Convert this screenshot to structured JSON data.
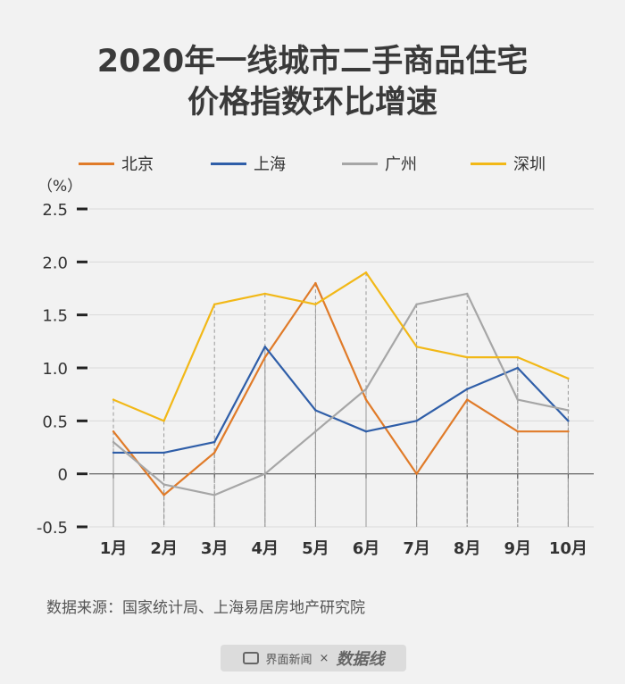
{
  "header": {
    "title_line1": "2020年一线城市二手商品住宅",
    "title_line2": "价格指数环比增速"
  },
  "source_text": "数据来源：国家统计局、上海易居房地产研究院",
  "footer": {
    "brand1": "界面新闻",
    "separator": "×",
    "brand2": "数据线"
  },
  "colors": {
    "北京": "#e07b29",
    "上海": "#2f5ea8",
    "广州": "#a6a6a6",
    "深圳": "#f2b817"
  },
  "chart_data": {
    "type": "line",
    "title": "2020年一线城市二手商品住宅价格指数环比增速",
    "unit_label": "（%）",
    "categories": [
      "1月",
      "2月",
      "3月",
      "4月",
      "5月",
      "6月",
      "7月",
      "8月",
      "9月",
      "10月"
    ],
    "ylim": [
      -0.5,
      2.5
    ],
    "yticks": [
      -0.5,
      0,
      0.5,
      1.0,
      1.5,
      2.0,
      2.5
    ],
    "ytick_labels": [
      "-0.5",
      "0",
      "0.5",
      "1.0",
      "1.5",
      "2.0",
      "2.5"
    ],
    "grid": true,
    "legend_position": "top",
    "series": [
      {
        "name": "北京",
        "values": [
          0.4,
          -0.2,
          0.2,
          1.1,
          1.8,
          0.7,
          0.0,
          0.7,
          0.4,
          0.4
        ]
      },
      {
        "name": "上海",
        "values": [
          0.2,
          0.2,
          0.3,
          1.2,
          0.6,
          0.4,
          0.5,
          0.8,
          1.0,
          0.5
        ]
      },
      {
        "name": "广州",
        "values": [
          0.3,
          -0.1,
          -0.2,
          0.0,
          0.4,
          0.8,
          1.6,
          1.7,
          0.7,
          0.6
        ]
      },
      {
        "name": "深圳",
        "values": [
          0.7,
          0.5,
          1.6,
          1.7,
          1.6,
          1.9,
          1.2,
          1.1,
          1.1,
          0.9
        ]
      }
    ]
  }
}
